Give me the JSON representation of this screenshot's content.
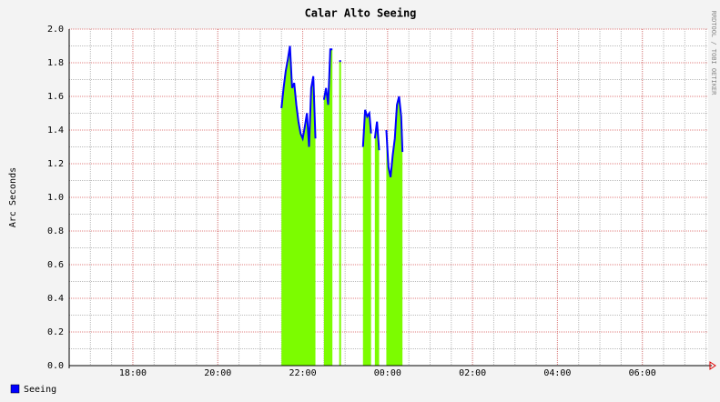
{
  "chart_data": {
    "type": "area",
    "title": "Calar Alto Seeing",
    "y_label": "Arc Seconds",
    "watermark": "RRDTOOL / TOBI OETIKER",
    "x": [
      21.5,
      21.55,
      21.6,
      21.65,
      21.7,
      21.75,
      21.8,
      21.85,
      21.9,
      21.95,
      22.0,
      22.05,
      22.1,
      22.15,
      22.2,
      22.25,
      22.3,
      22.4,
      22.5,
      22.55,
      22.6,
      22.65,
      22.7,
      22.78,
      22.86,
      23.1,
      23.42,
      23.47,
      23.52,
      23.57,
      23.61,
      23.65,
      23.7,
      23.75,
      23.8,
      23.88,
      23.97,
      24.02,
      24.07,
      24.12,
      24.17,
      24.22,
      24.27,
      24.32,
      24.35
    ],
    "series": [
      {
        "name": "Seeing",
        "color": "#0000ff",
        "fill": "#7cfc00",
        "values": [
          1.53,
          1.65,
          1.75,
          1.82,
          1.9,
          1.65,
          1.68,
          1.55,
          1.45,
          1.38,
          1.35,
          1.42,
          1.5,
          1.3,
          1.65,
          1.72,
          1.35,
          null,
          1.58,
          1.65,
          1.55,
          1.88,
          1.88,
          null,
          1.81,
          null,
          1.3,
          1.52,
          1.48,
          1.5,
          1.38,
          null,
          1.35,
          1.45,
          1.28,
          null,
          1.4,
          1.18,
          1.12,
          1.25,
          1.35,
          1.55,
          1.6,
          1.48,
          1.27
        ]
      }
    ],
    "xlim": [
      16.5,
      31.55
    ],
    "xticks": [
      {
        "value": 18,
        "label": "18:00"
      },
      {
        "value": 20,
        "label": "20:00"
      },
      {
        "value": 22,
        "label": "22:00"
      },
      {
        "value": 24,
        "label": "00:00"
      },
      {
        "value": 26,
        "label": "02:00"
      },
      {
        "value": 28,
        "label": "04:00"
      },
      {
        "value": 30,
        "label": "06:00"
      }
    ],
    "ylim": [
      0,
      2
    ],
    "yticks": [
      {
        "value": 0,
        "label": "0.0"
      },
      {
        "value": 0.2,
        "label": "0.2"
      },
      {
        "value": 0.4,
        "label": "0.4"
      },
      {
        "value": 0.6,
        "label": "0.6"
      },
      {
        "value": 0.8,
        "label": "0.8"
      },
      {
        "value": 1,
        "label": "1.0"
      },
      {
        "value": 1.2,
        "label": "1.2"
      },
      {
        "value": 1.4,
        "label": "1.4"
      },
      {
        "value": 1.6,
        "label": "1.6"
      },
      {
        "value": 1.8,
        "label": "1.8"
      },
      {
        "value": 2,
        "label": "2.0"
      }
    ],
    "grid": true,
    "legend": "bottom-left"
  }
}
